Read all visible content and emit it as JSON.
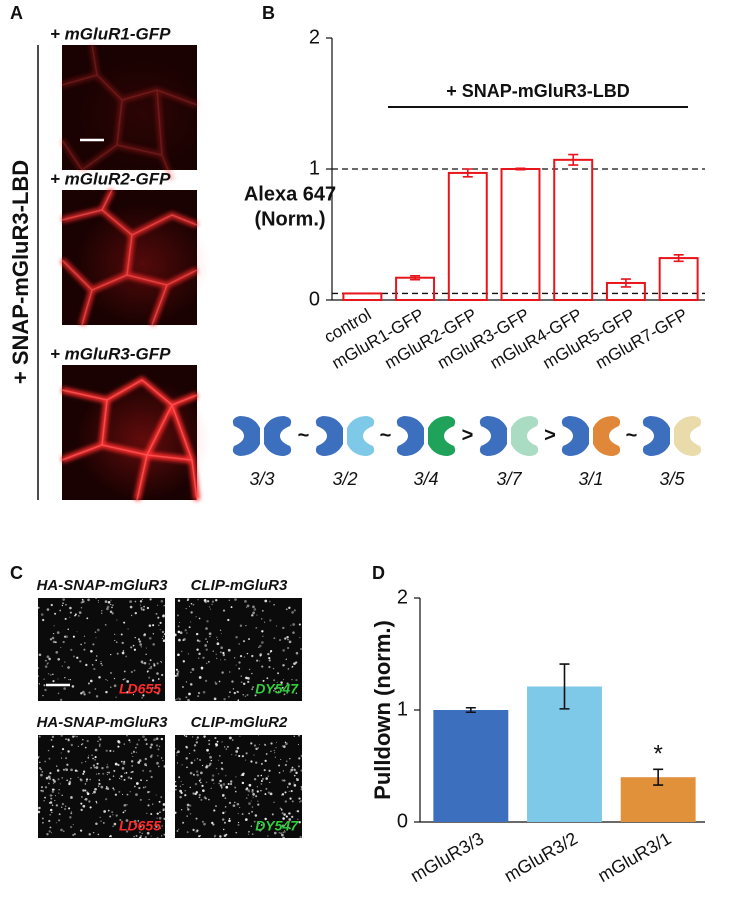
{
  "panel_labels": [
    "A",
    "B",
    "C",
    "D"
  ],
  "panel_a": {
    "side_label": "+ SNAP-mGluR3-LBD",
    "images": [
      "+ mGluR1-GFP",
      "+ mGluR2-GFP",
      "+ mGluR3-GFP"
    ]
  },
  "chart_data": [
    {
      "type": "bar",
      "ylabel": [
        "Alexa 647",
        "(Norm.)"
      ],
      "annotation": "+ SNAP-mGluR3-LBD",
      "categories": [
        "control",
        "mGluR1-GFP",
        "mGluR2-GFP",
        "mGluR3-GFP",
        "mGluR4-GFP",
        "mGluR5-GFP",
        "mGluR7-GFP"
      ],
      "values": [
        0.05,
        0.17,
        0.97,
        1.0,
        1.07,
        0.13,
        0.32
      ],
      "errors": [
        0,
        0.015,
        0.03,
        0.005,
        0.04,
        0.03,
        0.025
      ],
      "color": "#e8151b",
      "filled": false,
      "reference_lines": [
        1,
        0.05
      ],
      "ylim": [
        0,
        2
      ],
      "yticks": [
        0,
        1,
        2
      ]
    },
    {
      "type": "bar",
      "ylabel": [
        "Pulldown (norm.)"
      ],
      "categories": [
        "mGluR3/3",
        "mGluR3/2",
        "mGluR3/1"
      ],
      "values": [
        1.0,
        1.21,
        0.4
      ],
      "errors": [
        0.02,
        0.2,
        0.07
      ],
      "colors": [
        "#3d6fbf",
        "#7ec8e8",
        "#e0913a"
      ],
      "filled": true,
      "significance": {
        "text": "*",
        "category": "mGluR3/1"
      },
      "ylim": [
        0,
        2
      ],
      "yticks": [
        0,
        1,
        2
      ]
    }
  ],
  "dimers": {
    "labels": [
      "3/3",
      "3/2",
      "3/4",
      "3/7",
      "3/1",
      "3/5"
    ],
    "separators": [
      "~",
      "~",
      ">",
      ">",
      "~"
    ],
    "colors": [
      "#3d6fbf",
      "#7ec8e8",
      "#1fa35a",
      "#a9dcc3",
      "#e0873a",
      "#e9dcaa"
    ]
  },
  "panel_c": {
    "images": [
      {
        "title": "HA-SNAP-mGluR3",
        "dye": "LD655"
      },
      {
        "title": "CLIP-mGluR3",
        "dye": "DY547"
      },
      {
        "title": "HA-SNAP-mGluR3",
        "dye": "LD655"
      },
      {
        "title": "CLIP-mGluR2",
        "dye": "DY547"
      }
    ]
  }
}
